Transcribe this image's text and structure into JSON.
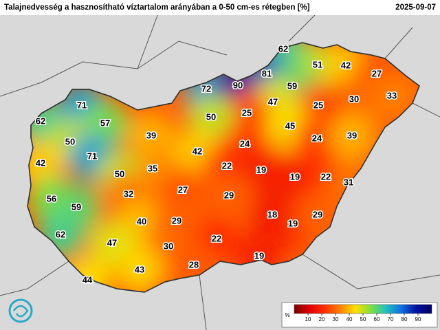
{
  "header": {
    "title": "Talajnedvesség a hasznosítható víztartalom arányában a 0-50 cm-es rétegben [%]",
    "date": "2025-09-07"
  },
  "stations": {
    "values": [
      62,
      51,
      42,
      27,
      81,
      72,
      90,
      59,
      33,
      30,
      47,
      25,
      71,
      25,
      50,
      62,
      57,
      45,
      39,
      24,
      39,
      50,
      24,
      42,
      42,
      71,
      22,
      19,
      35,
      50,
      19,
      22,
      31,
      27,
      32,
      29,
      56,
      59,
      18,
      19,
      29,
      40,
      29,
      62,
      47,
      22,
      30,
      19,
      28,
      43,
      44
    ]
  },
  "colorbar": {
    "unit": "%",
    "range": [
      0,
      100
    ],
    "ticks": [
      10,
      20,
      30,
      40,
      50,
      60,
      70,
      80,
      90
    ],
    "colors": [
      "#7a0000",
      "#e00000",
      "#ff3000",
      "#ff8000",
      "#ffe000",
      "#80e040",
      "#20c0c0",
      "#1070e0",
      "#0010a0",
      "#000060"
    ]
  }
}
